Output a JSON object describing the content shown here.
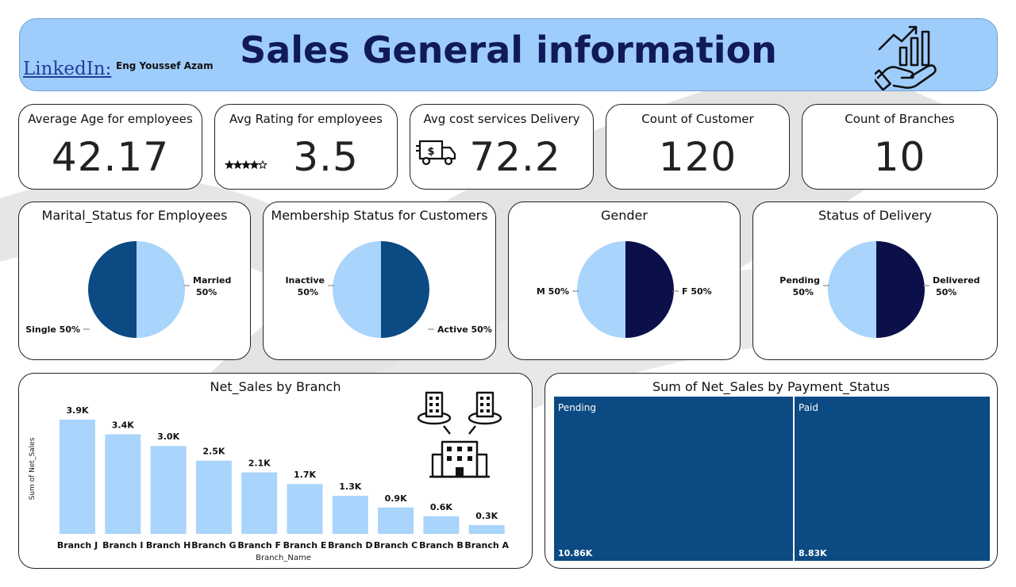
{
  "header": {
    "title": "Sales General information",
    "linkedin_label": "LinkedIn:",
    "author": "Eng Youssef Azam"
  },
  "kpis": [
    {
      "label": "Average Age for employees",
      "value": "42.17",
      "icon": ""
    },
    {
      "label": "Avg Rating for employees",
      "value": "3.5",
      "icon": "stars-icon",
      "rating": 3.5
    },
    {
      "label": "Avg cost services Delivery",
      "value": "72.2",
      "icon": "delivery-truck-icon"
    },
    {
      "label": "Count of Customer",
      "value": "120",
      "icon": ""
    },
    {
      "label": "Count of Branches",
      "value": "10",
      "icon": ""
    }
  ],
  "colors": {
    "light_blue": "#a9d4fb",
    "dark_blue": "#0b4a82",
    "navy": "#0b0f4a",
    "bar": "#a9d4fb",
    "treemap": "#0b4a82",
    "header_bg": "#9fcdfb",
    "title": "#101a5a"
  },
  "chart_data": [
    {
      "type": "pie",
      "title": "Marital_Status for Employees",
      "slices": [
        {
          "label": "Married",
          "pct": "50%",
          "value": 50,
          "color": "#a9d4fb"
        },
        {
          "label": "Single",
          "pct": "50%",
          "value": 50,
          "color": "#0b4a82"
        }
      ]
    },
    {
      "type": "pie",
      "title": "Membership Status for Customers",
      "slices": [
        {
          "label": "Active",
          "pct": "50%",
          "value": 50,
          "color": "#0b4a82"
        },
        {
          "label": "Inactive",
          "pct": "50%",
          "value": 50,
          "color": "#a9d4fb"
        }
      ]
    },
    {
      "type": "pie",
      "title": "Gender",
      "slices": [
        {
          "label": "F",
          "pct": "50%",
          "value": 50,
          "color": "#0b0f4a"
        },
        {
          "label": "M",
          "pct": "50%",
          "value": 50,
          "color": "#a9d4fb"
        }
      ]
    },
    {
      "type": "pie",
      "title": "Status of Delivery",
      "slices": [
        {
          "label": "Delivered",
          "pct": "50%",
          "value": 50,
          "color": "#0b0f4a"
        },
        {
          "label": "Pending",
          "pct": "50%",
          "value": 50,
          "color": "#a9d4fb"
        }
      ]
    },
    {
      "type": "bar",
      "title": "Net_Sales by Branch",
      "xlabel": "Branch_Name",
      "ylabel": "Sum of Net_Sales",
      "categories": [
        "Branch J",
        "Branch I",
        "Branch H",
        "Branch G",
        "Branch F",
        "Branch E",
        "Branch D",
        "Branch C",
        "Branch B",
        "Branch A"
      ],
      "values": [
        3.9,
        3.4,
        3.0,
        2.5,
        2.1,
        1.7,
        1.3,
        0.9,
        0.6,
        0.3
      ],
      "data_labels": [
        "3.9K",
        "3.4K",
        "3.0K",
        "2.5K",
        "2.1K",
        "1.7K",
        "1.3K",
        "0.9K",
        "0.6K",
        "0.3K"
      ],
      "ylim": [
        0,
        3.9
      ]
    },
    {
      "type": "treemap",
      "title": "Sum of Net_Sales by Payment_Status",
      "items": [
        {
          "label": "Pending",
          "value": 10.86,
          "value_label": "10.86K"
        },
        {
          "label": "Paid",
          "value": 8.83,
          "value_label": "8.83K"
        }
      ]
    }
  ]
}
